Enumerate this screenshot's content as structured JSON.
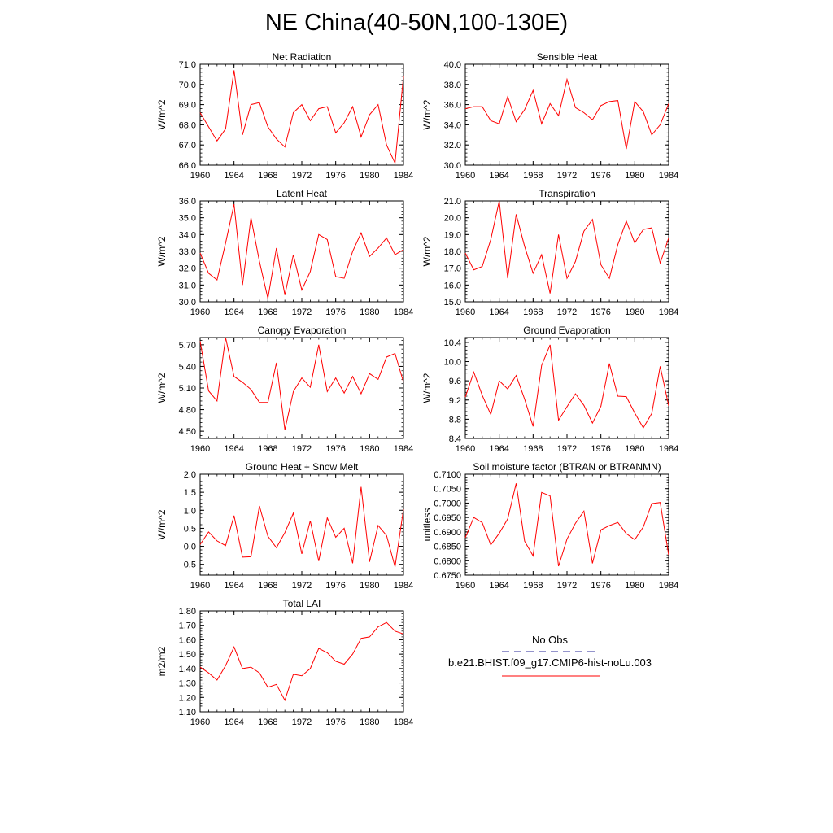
{
  "figure": {
    "title": "NE China(40-50N,100-130E)"
  },
  "chart_data": [
    {
      "type": "line",
      "title": "Net Radiation",
      "ylabel": "W/m^2",
      "xlim": [
        1960,
        1984
      ],
      "ylim": [
        66.0,
        71.0
      ],
      "xticks": [
        1960,
        1964,
        1968,
        1972,
        1976,
        1980,
        1984
      ],
      "xtick_labels": [
        "1960",
        "1964",
        "1968",
        "1972",
        "1976",
        "1980",
        "1984"
      ],
      "yticks": [
        66.0,
        67.0,
        68.0,
        69.0,
        70.0,
        71.0
      ],
      "ytick_labels": [
        "66.0",
        "67.0",
        "68.0",
        "69.0",
        "70.0",
        "71.0"
      ],
      "series": [
        {
          "name": "b.e21.BHIST.f09_g17.CMIP6-hist-noLu.003",
          "color": "#ff0000",
          "x": [
            1960,
            1961,
            1962,
            1963,
            1964,
            1965,
            1966,
            1967,
            1968,
            1969,
            1970,
            1971,
            1972,
            1973,
            1974,
            1975,
            1976,
            1977,
            1978,
            1979,
            1980,
            1981,
            1982,
            1983,
            1984
          ],
          "y": [
            68.6,
            67.9,
            67.2,
            67.8,
            70.7,
            67.5,
            69.0,
            69.1,
            67.9,
            67.3,
            66.9,
            68.6,
            69.0,
            68.2,
            68.8,
            68.9,
            67.6,
            68.1,
            68.9,
            67.4,
            68.5,
            69.0,
            67.0,
            66.1,
            70.4
          ]
        }
      ]
    },
    {
      "type": "line",
      "title": "Sensible Heat",
      "ylabel": "W/m^2",
      "xlim": [
        1960,
        1984
      ],
      "ylim": [
        30.0,
        40.0
      ],
      "xticks": [
        1960,
        1964,
        1968,
        1972,
        1976,
        1980,
        1984
      ],
      "xtick_labels": [
        "1960",
        "1964",
        "1968",
        "1972",
        "1976",
        "1980",
        "1984"
      ],
      "yticks": [
        30.0,
        32.0,
        34.0,
        36.0,
        38.0,
        40.0
      ],
      "ytick_labels": [
        "30.0",
        "32.0",
        "34.0",
        "36.0",
        "38.0",
        "40.0"
      ],
      "series": [
        {
          "name": "b.e21.BHIST.f09_g17.CMIP6-hist-noLu.003",
          "color": "#ff0000",
          "x": [
            1960,
            1961,
            1962,
            1963,
            1964,
            1965,
            1966,
            1967,
            1968,
            1969,
            1970,
            1971,
            1972,
            1973,
            1974,
            1975,
            1976,
            1977,
            1978,
            1979,
            1980,
            1981,
            1982,
            1983,
            1984
          ],
          "y": [
            35.6,
            35.8,
            35.8,
            34.4,
            34.1,
            36.8,
            34.3,
            35.5,
            37.4,
            34.1,
            36.1,
            34.9,
            38.5,
            35.7,
            35.2,
            34.5,
            35.9,
            36.3,
            36.4,
            31.6,
            36.3,
            35.3,
            33.0,
            34.0,
            36.1
          ]
        }
      ]
    },
    {
      "type": "line",
      "title": "Latent Heat",
      "ylabel": "W/m^2",
      "xlim": [
        1960,
        1984
      ],
      "ylim": [
        30.0,
        36.0
      ],
      "xticks": [
        1960,
        1964,
        1968,
        1972,
        1976,
        1980,
        1984
      ],
      "xtick_labels": [
        "1960",
        "1964",
        "1968",
        "1972",
        "1976",
        "1980",
        "1984"
      ],
      "yticks": [
        30.0,
        31.0,
        32.0,
        33.0,
        34.0,
        35.0,
        36.0
      ],
      "ytick_labels": [
        "30.0",
        "31.0",
        "32.0",
        "33.0",
        "34.0",
        "35.0",
        "36.0"
      ],
      "series": [
        {
          "name": "b.e21.BHIST.f09_g17.CMIP6-hist-noLu.003",
          "color": "#ff0000",
          "x": [
            1960,
            1961,
            1962,
            1963,
            1964,
            1965,
            1966,
            1967,
            1968,
            1969,
            1970,
            1971,
            1972,
            1973,
            1974,
            1975,
            1976,
            1977,
            1978,
            1979,
            1980,
            1981,
            1982,
            1983,
            1984
          ],
          "y": [
            32.9,
            31.7,
            31.3,
            33.5,
            35.8,
            31.0,
            35.0,
            32.4,
            30.2,
            33.2,
            30.4,
            32.8,
            30.7,
            31.8,
            34.0,
            33.7,
            31.5,
            31.4,
            33.0,
            34.1,
            32.7,
            33.2,
            33.8,
            32.8,
            33.1
          ]
        }
      ]
    },
    {
      "type": "line",
      "title": "Transpiration",
      "ylabel": "W/m^2",
      "xlim": [
        1960,
        1984
      ],
      "ylim": [
        15.0,
        21.0
      ],
      "xticks": [
        1960,
        1964,
        1968,
        1972,
        1976,
        1980,
        1984
      ],
      "xtick_labels": [
        "1960",
        "1964",
        "1968",
        "1972",
        "1976",
        "1980",
        "1984"
      ],
      "yticks": [
        15.0,
        16.0,
        17.0,
        18.0,
        19.0,
        20.0,
        21.0
      ],
      "ytick_labels": [
        "15.0",
        "16.0",
        "17.0",
        "18.0",
        "19.0",
        "20.0",
        "21.0"
      ],
      "series": [
        {
          "name": "b.e21.BHIST.f09_g17.CMIP6-hist-noLu.003",
          "color": "#ff0000",
          "x": [
            1960,
            1961,
            1962,
            1963,
            1964,
            1965,
            1966,
            1967,
            1968,
            1969,
            1970,
            1971,
            1972,
            1973,
            1974,
            1975,
            1976,
            1977,
            1978,
            1979,
            1980,
            1981,
            1982,
            1983,
            1984
          ],
          "y": [
            17.9,
            16.9,
            17.1,
            18.7,
            21.0,
            16.4,
            20.2,
            18.3,
            16.7,
            17.8,
            15.5,
            19.0,
            16.4,
            17.4,
            19.2,
            19.9,
            17.2,
            16.4,
            18.4,
            19.8,
            18.5,
            19.3,
            19.4,
            17.3,
            18.8
          ]
        }
      ]
    },
    {
      "type": "line",
      "title": "Canopy Evaporation",
      "ylabel": "W/m^2",
      "xlim": [
        1960,
        1984
      ],
      "ylim": [
        4.4,
        5.8
      ],
      "xticks": [
        1960,
        1964,
        1968,
        1972,
        1976,
        1980,
        1984
      ],
      "xtick_labels": [
        "1960",
        "1964",
        "1968",
        "1972",
        "1976",
        "1980",
        "1984"
      ],
      "yticks": [
        4.5,
        4.8,
        5.1,
        5.4,
        5.7
      ],
      "ytick_labels": [
        "4.50",
        "4.80",
        "5.10",
        "5.40",
        "5.70"
      ],
      "series": [
        {
          "name": "b.e21.BHIST.f09_g17.CMIP6-hist-noLu.003",
          "color": "#ff0000",
          "x": [
            1960,
            1961,
            1962,
            1963,
            1964,
            1965,
            1966,
            1967,
            1968,
            1969,
            1970,
            1971,
            1972,
            1973,
            1974,
            1975,
            1976,
            1977,
            1978,
            1979,
            1980,
            1981,
            1982,
            1983,
            1984
          ],
          "y": [
            5.75,
            5.06,
            4.92,
            5.8,
            5.26,
            5.18,
            5.08,
            4.9,
            4.9,
            5.45,
            4.52,
            5.05,
            5.24,
            5.11,
            5.7,
            5.05,
            5.24,
            5.03,
            5.26,
            5.02,
            5.3,
            5.22,
            5.53,
            5.58,
            5.18
          ]
        }
      ]
    },
    {
      "type": "line",
      "title": "Ground Evaporation",
      "ylabel": "W/m^2",
      "xlim": [
        1960,
        1984
      ],
      "ylim": [
        8.4,
        10.5
      ],
      "xticks": [
        1960,
        1964,
        1968,
        1972,
        1976,
        1980,
        1984
      ],
      "xtick_labels": [
        "1960",
        "1964",
        "1968",
        "1972",
        "1976",
        "1980",
        "1984"
      ],
      "yticks": [
        8.4,
        8.8,
        9.2,
        9.6,
        10.0,
        10.4
      ],
      "ytick_labels": [
        "8.4",
        "8.8",
        "9.2",
        "9.6",
        "10.0",
        "10.4"
      ],
      "series": [
        {
          "name": "b.e21.BHIST.f09_g17.CMIP6-hist-noLu.003",
          "color": "#ff0000",
          "x": [
            1960,
            1961,
            1962,
            1963,
            1964,
            1965,
            1966,
            1967,
            1968,
            1969,
            1970,
            1971,
            1972,
            1973,
            1974,
            1975,
            1976,
            1977,
            1978,
            1979,
            1980,
            1981,
            1982,
            1983,
            1984
          ],
          "y": [
            9.26,
            9.78,
            9.3,
            8.9,
            9.6,
            9.43,
            9.71,
            9.22,
            8.65,
            9.92,
            10.35,
            8.78,
            9.06,
            9.33,
            9.09,
            8.72,
            9.07,
            9.96,
            9.28,
            9.27,
            8.93,
            8.62,
            8.92,
            9.9,
            9.08
          ]
        }
      ]
    },
    {
      "type": "line",
      "title": "Ground Heat + Snow Melt",
      "ylabel": "W/m^2",
      "xlim": [
        1960,
        1984
      ],
      "ylim": [
        -0.8,
        2.0
      ],
      "xticks": [
        1960,
        1964,
        1968,
        1972,
        1976,
        1980,
        1984
      ],
      "xtick_labels": [
        "1960",
        "1964",
        "1968",
        "1972",
        "1976",
        "1980",
        "1984"
      ],
      "yticks": [
        -0.5,
        0.0,
        0.5,
        1.0,
        1.5,
        2.0
      ],
      "ytick_labels": [
        "-0.5",
        "0.0",
        "0.5",
        "1.0",
        "1.5",
        "2.0"
      ],
      "series": [
        {
          "name": "b.e21.BHIST.f09_g17.CMIP6-hist-noLu.003",
          "color": "#ff0000",
          "x": [
            1960,
            1961,
            1962,
            1963,
            1964,
            1965,
            1966,
            1967,
            1968,
            1969,
            1970,
            1971,
            1972,
            1973,
            1974,
            1975,
            1976,
            1977,
            1978,
            1979,
            1980,
            1981,
            1982,
            1983,
            1984
          ],
          "y": [
            0.05,
            0.4,
            0.15,
            0.02,
            0.85,
            -0.3,
            -0.29,
            1.12,
            0.28,
            -0.04,
            0.38,
            0.92,
            -0.21,
            0.71,
            -0.41,
            0.79,
            0.25,
            0.5,
            -0.47,
            1.65,
            -0.43,
            0.58,
            0.3,
            -0.57,
            1.03
          ]
        }
      ]
    },
    {
      "type": "line",
      "title": "Soil moisture factor (BTRAN or BTRANMN)",
      "ylabel": "unitless",
      "xlim": [
        1960,
        1984
      ],
      "ylim": [
        0.675,
        0.71
      ],
      "xticks": [
        1960,
        1964,
        1968,
        1972,
        1976,
        1980,
        1984
      ],
      "xtick_labels": [
        "1960",
        "1964",
        "1968",
        "1972",
        "1976",
        "1980",
        "1984"
      ],
      "yticks": [
        0.675,
        0.68,
        0.685,
        0.69,
        0.695,
        0.7,
        0.705,
        0.71
      ],
      "ytick_labels": [
        "0.6750",
        "0.6800",
        "0.6850",
        "0.6900",
        "0.6950",
        "0.7000",
        "0.7050",
        "0.7100"
      ],
      "series": [
        {
          "name": "b.e21.BHIST.f09_g17.CMIP6-hist-noLu.003",
          "color": "#ff0000",
          "x": [
            1960,
            1961,
            1962,
            1963,
            1964,
            1965,
            1966,
            1967,
            1968,
            1969,
            1970,
            1971,
            1972,
            1973,
            1974,
            1975,
            1976,
            1977,
            1978,
            1979,
            1980,
            1981,
            1982,
            1983,
            1984
          ],
          "y": [
            0.688,
            0.695,
            0.6932,
            0.6855,
            0.6895,
            0.6945,
            0.7068,
            0.6868,
            0.6817,
            0.7037,
            0.7025,
            0.6781,
            0.6875,
            0.693,
            0.6972,
            0.6791,
            0.6907,
            0.6922,
            0.6933,
            0.6894,
            0.6873,
            0.6917,
            0.6998,
            0.7002,
            0.682
          ]
        }
      ]
    },
    {
      "type": "line",
      "title": "Total LAI",
      "ylabel": "m2/m2",
      "xlim": [
        1960,
        1984
      ],
      "ylim": [
        1.1,
        1.8
      ],
      "xticks": [
        1960,
        1964,
        1968,
        1972,
        1976,
        1980,
        1984
      ],
      "xtick_labels": [
        "1960",
        "1964",
        "1968",
        "1972",
        "1976",
        "1980",
        "1984"
      ],
      "yticks": [
        1.1,
        1.2,
        1.3,
        1.4,
        1.5,
        1.6,
        1.7,
        1.8
      ],
      "ytick_labels": [
        "1.10",
        "1.20",
        "1.30",
        "1.40",
        "1.50",
        "1.60",
        "1.70",
        "1.80"
      ],
      "series": [
        {
          "name": "b.e21.BHIST.f09_g17.CMIP6-hist-noLu.003",
          "color": "#ff0000",
          "x": [
            1960,
            1961,
            1962,
            1963,
            1964,
            1965,
            1966,
            1967,
            1968,
            1969,
            1970,
            1971,
            1972,
            1973,
            1974,
            1975,
            1976,
            1977,
            1978,
            1979,
            1980,
            1981,
            1982,
            1983,
            1984
          ],
          "y": [
            1.41,
            1.37,
            1.32,
            1.42,
            1.55,
            1.4,
            1.41,
            1.37,
            1.27,
            1.29,
            1.18,
            1.36,
            1.35,
            1.4,
            1.54,
            1.51,
            1.45,
            1.43,
            1.5,
            1.61,
            1.62,
            1.69,
            1.72,
            1.66,
            1.64
          ]
        }
      ]
    }
  ],
  "legend": {
    "entries": [
      {
        "label": "No Obs",
        "style": "dashed",
        "color": "#2a2a9a"
      },
      {
        "label": "b.e21.BHIST.f09_g17.CMIP6-hist-noLu.003",
        "style": "solid",
        "color": "#ff0000"
      }
    ]
  }
}
